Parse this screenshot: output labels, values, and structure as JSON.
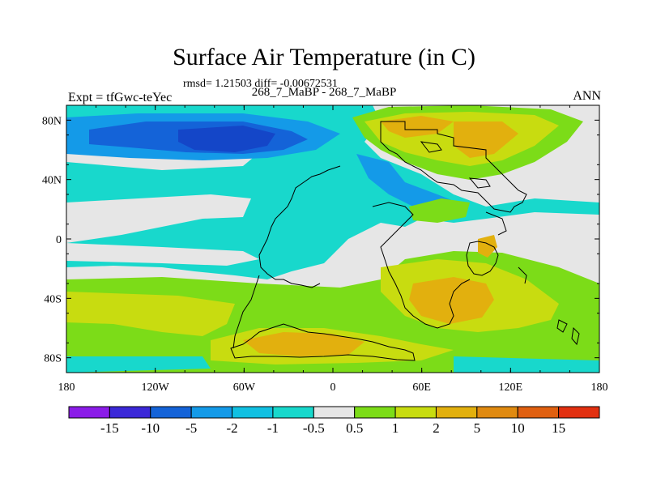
{
  "title": "Surface Air Temperature (in C)",
  "stats_line": "rmsd= 1.21503 diff= -0.00672531",
  "cases_line": "268_7_MaBP - 268_7_MaBP",
  "experiment_label": "Expt = tfGwc-teYec",
  "season_label": "ANN",
  "map": {
    "projection": "cylindrical equidistant",
    "lon_range": [
      -180,
      180
    ],
    "lat_range": [
      -90,
      90
    ],
    "lon_tick_labels": [
      "180",
      "120W",
      "60W",
      "0",
      "60E",
      "120E",
      "180"
    ],
    "lat_tick_labels": [
      "80N",
      "40N",
      "0",
      "40S",
      "80S"
    ]
  },
  "colorbar": {
    "colors": [
      "#8b1ce8",
      "#3b28d8",
      "#1463d8",
      "#149ae8",
      "#11c0e2",
      "#18d8cc",
      "#e6e6e6",
      "#7cdc18",
      "#c8dc10",
      "#e2b00e",
      "#e08a10",
      "#e06010",
      "#e23010"
    ],
    "labels": [
      "-15",
      "-10",
      "-5",
      "-2",
      "-1",
      "-0.5",
      "0.5",
      "1",
      "2",
      "5",
      "10",
      "15"
    ]
  }
}
